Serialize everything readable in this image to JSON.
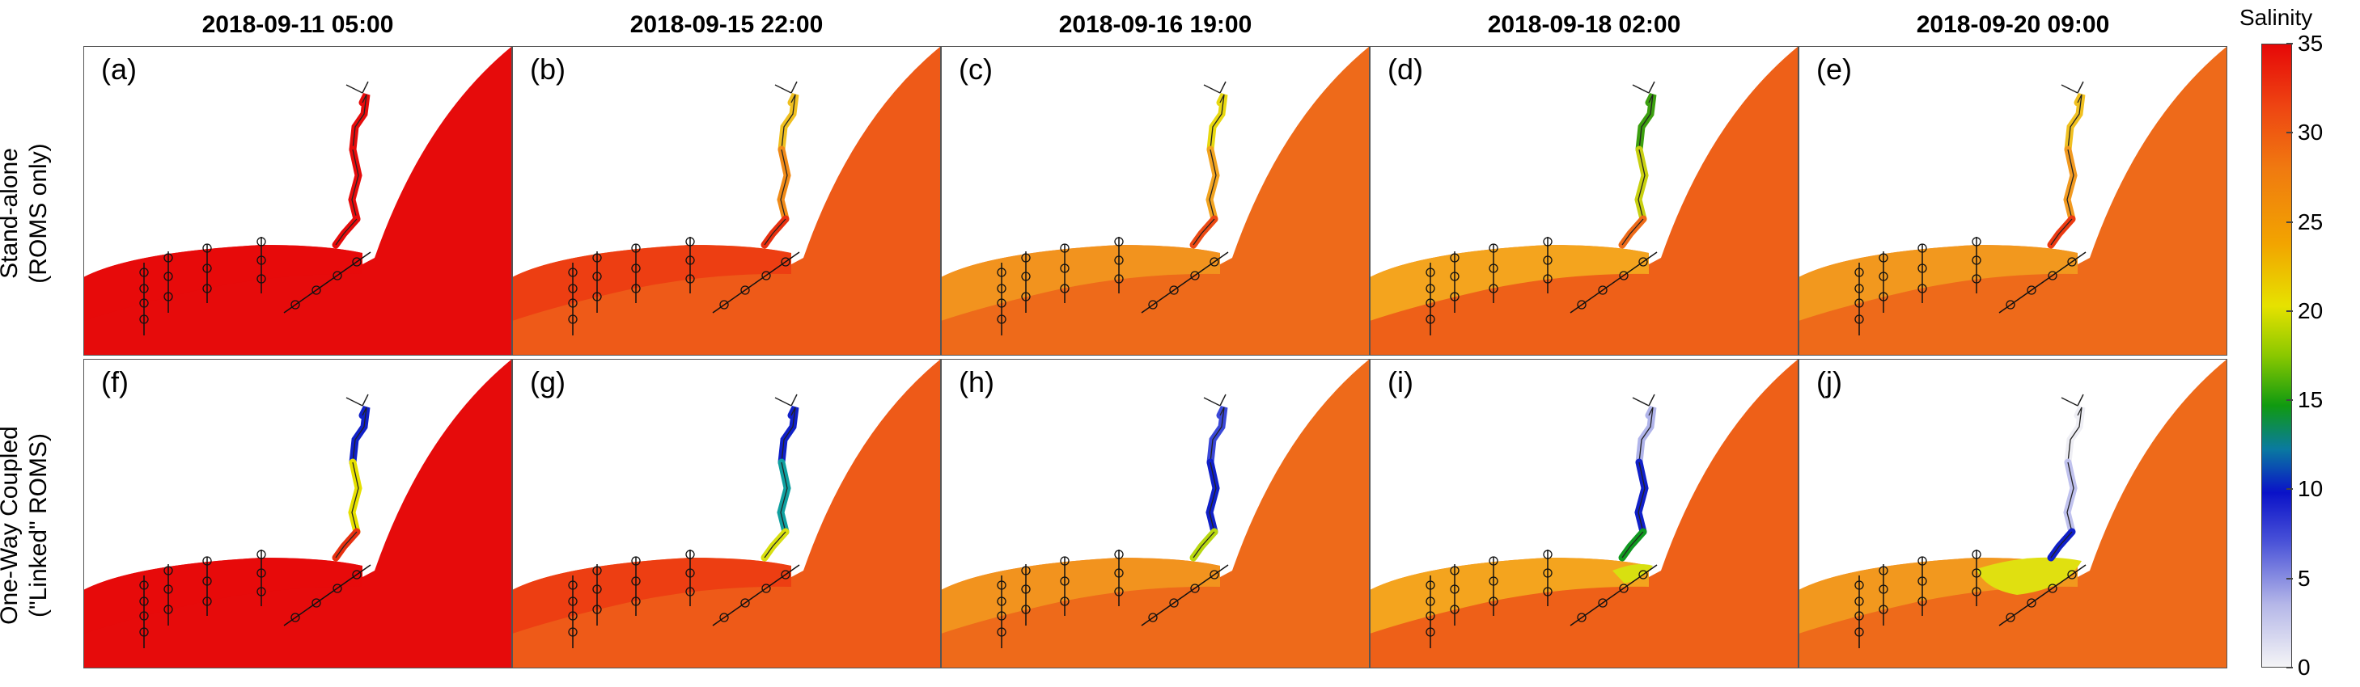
{
  "columns": [
    {
      "title": "2018-09-11 05:00"
    },
    {
      "title": "2018-09-15 22:00"
    },
    {
      "title": "2018-09-16 19:00"
    },
    {
      "title": "2018-09-18 02:00"
    },
    {
      "title": "2018-09-20 09:00"
    }
  ],
  "rows": [
    {
      "label_line1": "Stand-alone",
      "label_line2": "(ROMS only)"
    },
    {
      "label_line1": "One-Way Coupled",
      "label_line2": "(\"Linked\" ROMS)"
    }
  ],
  "panels": [
    {
      "letter": "(a)",
      "ocean": "#e60b0b",
      "shelf": "#e60b0b",
      "plume": "#e60b0b",
      "plume_extent": 0,
      "river": [
        "#e60b0b",
        "#e60b0b",
        "#e60b0b"
      ]
    },
    {
      "letter": "(b)",
      "ocean": "#ee5a18",
      "shelf": "#ec3a12",
      "plume": "#ec3a12",
      "plume_extent": 0,
      "river": [
        "#f0c020",
        "#f08a18",
        "#e83010"
      ]
    },
    {
      "letter": "(c)",
      "ocean": "#ee6a1a",
      "shelf": "#f29a20",
      "plume": "#f08a18",
      "plume_extent": 0,
      "river": [
        "#e8d810",
        "#f2a420",
        "#ec4a14"
      ]
    },
    {
      "letter": "(d)",
      "ocean": "#ee6018",
      "shelf": "#f4b020",
      "plume": "#ee5a16",
      "plume_extent": 0,
      "river": [
        "#3ca010",
        "#c8d010",
        "#ee6a18"
      ]
    },
    {
      "letter": "(e)",
      "ocean": "#ee6a1a",
      "shelf": "#f2a020",
      "plume": "#ee5a16",
      "plume_extent": 0,
      "river": [
        "#f0c020",
        "#f29a20",
        "#ec3a12"
      ]
    },
    {
      "letter": "(f)",
      "ocean": "#e60b0b",
      "shelf": "#e60b0b",
      "plume": "#e60b0b",
      "plume_extent": 0,
      "river": [
        "#1020c8",
        "#e6e000",
        "#e83010"
      ]
    },
    {
      "letter": "(g)",
      "ocean": "#ee5a18",
      "shelf": "#ec3a12",
      "plume": "#ec3a12",
      "plume_extent": 0,
      "river": [
        "#1020c8",
        "#10a0a0",
        "#d8e010"
      ]
    },
    {
      "letter": "(h)",
      "ocean": "#ee6a1a",
      "shelf": "#f29a20",
      "plume": "#f08a18",
      "plume_extent": 0,
      "river": [
        "#3a48d8",
        "#1020c8",
        "#b8d810"
      ]
    },
    {
      "letter": "(i)",
      "ocean": "#ee6018",
      "shelf": "#f4b020",
      "plume": "#d8e010",
      "plume_extent": 1,
      "river": [
        "#b0b4ea",
        "#1020c8",
        "#109a20"
      ]
    },
    {
      "letter": "(j)",
      "ocean": "#ee6a1a",
      "shelf": "#f2a020",
      "plume": "#e0e010",
      "plume_extent": 2,
      "river": [
        "#eeeef4",
        "#c0c2ee",
        "#1020c8"
      ]
    }
  ],
  "colorbar": {
    "title": "Salinity",
    "ticks": [
      "0",
      "5",
      "10",
      "15",
      "20",
      "25",
      "30",
      "35"
    ],
    "min": 0,
    "max": 35
  }
}
